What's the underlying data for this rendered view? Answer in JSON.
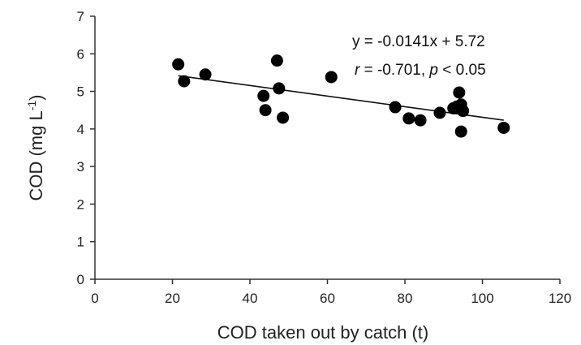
{
  "chart_data": {
    "type": "scatter",
    "xlabel": "COD taken out by catch (t)",
    "ylabel_main": "COD (mg L",
    "ylabel_sup": "-1",
    "ylabel_close": ")",
    "xlim": [
      0,
      120
    ],
    "ylim": [
      0,
      7
    ],
    "x_ticks": [
      "0",
      "20",
      "40",
      "60",
      "80",
      "100",
      "120"
    ],
    "y_ticks": [
      "0",
      "1",
      "2",
      "3",
      "4",
      "5",
      "6",
      "7"
    ],
    "grid": false,
    "points": [
      {
        "x": 21.5,
        "y": 5.72
      },
      {
        "x": 23,
        "y": 5.27
      },
      {
        "x": 28.5,
        "y": 5.45
      },
      {
        "x": 43.5,
        "y": 4.88
      },
      {
        "x": 44,
        "y": 4.5
      },
      {
        "x": 47,
        "y": 5.82
      },
      {
        "x": 47.5,
        "y": 5.08
      },
      {
        "x": 48.5,
        "y": 4.3
      },
      {
        "x": 61,
        "y": 5.38
      },
      {
        "x": 77.5,
        "y": 4.58
      },
      {
        "x": 81,
        "y": 4.28
      },
      {
        "x": 84,
        "y": 4.23
      },
      {
        "x": 89,
        "y": 4.43
      },
      {
        "x": 92.5,
        "y": 4.55
      },
      {
        "x": 93.5,
        "y": 4.6
      },
      {
        "x": 94,
        "y": 4.97
      },
      {
        "x": 94.5,
        "y": 4.65
      },
      {
        "x": 95,
        "y": 4.48
      },
      {
        "x": 94.5,
        "y": 3.93
      },
      {
        "x": 105.5,
        "y": 4.03
      }
    ],
    "trendline": {
      "slope": -0.0141,
      "intercept": 5.72,
      "x_start": 21.5,
      "x_end": 105.5
    },
    "annotation_equation": "y = -0.0141x + 5.72",
    "annotation_stats": {
      "r_sym": "r",
      "r_val": " = -0.701, ",
      "p_sym": "p",
      "p_val": " < 0.05"
    }
  }
}
